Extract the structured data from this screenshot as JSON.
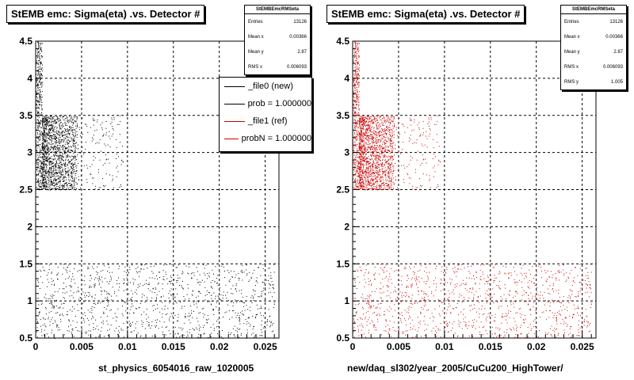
{
  "window": {
    "footer_text": ""
  },
  "chart_data": [
    {
      "type": "scatter",
      "title": "StEMB emc: Sigma(eta) .vs. Detector #",
      "xlabel": "st_physics_6054016_raw_1020005",
      "ylabel": "",
      "xlim": [
        0,
        0.0265
      ],
      "ylim": [
        0.5,
        4.5
      ],
      "xticks": [
        "0",
        "0.005",
        "0.01",
        "0.015",
        "0.02",
        "0.025"
      ],
      "yticks": [
        "0.5",
        "1",
        "1.5",
        "2",
        "2.5",
        "3",
        "3.5",
        "4",
        "4.5"
      ],
      "grid": true,
      "marker_color": "#000000",
      "stats": {
        "title": "StEMBEmcRMSeta",
        "rows": [
          {
            "label": "Entries",
            "value": "13126"
          },
          {
            "label": "Mean x",
            "value": "0.00366"
          },
          {
            "label": "Mean y",
            "value": "2.87"
          },
          {
            "label": "RMS x",
            "value": "0.006093"
          }
        ]
      },
      "legend": {
        "placement": "top-right",
        "entries": [
          {
            "label": "_file0 (new)",
            "color": "#000000"
          },
          {
            "label": "prob = 1.000000",
            "color": "#000000"
          },
          {
            "label": "_file1 (ref)",
            "color": "#cc0000"
          },
          {
            "label": "probN = 1.000000",
            "color": "#cc0000"
          }
        ]
      },
      "regions": [
        {
          "name": "spike",
          "x": [
            0,
            0.0007
          ],
          "y": [
            2.5,
            4.5
          ],
          "points": 420
        },
        {
          "name": "dense-band",
          "x": [
            0.0007,
            0.0045
          ],
          "y": [
            2.5,
            3.5
          ],
          "points": 1500
        },
        {
          "name": "sparse-band",
          "x": [
            0.0045,
            0.0095
          ],
          "y": [
            2.5,
            3.5
          ],
          "points": 140
        },
        {
          "name": "low-band",
          "x": [
            0,
            0.026
          ],
          "y": [
            0.5,
            1.5
          ],
          "points": 1100
        }
      ]
    },
    {
      "type": "scatter",
      "title": "StEMB emc: Sigma(eta) .vs. Detector #",
      "xlabel": "new/daq_sl302/year_2005/CuCu200_HighTower/",
      "ylabel": "",
      "xlim": [
        0,
        0.0265
      ],
      "ylim": [
        0.5,
        4.5
      ],
      "xticks": [
        "0",
        "0.005",
        "0.01",
        "0.015",
        "0.02",
        "0.025"
      ],
      "yticks": [
        "0.5",
        "1",
        "1.5",
        "2",
        "2.5",
        "3",
        "3.5",
        "4",
        "4.5"
      ],
      "grid": true,
      "marker_color": "#cc0000",
      "stats": {
        "title": "StEMBEmcRMSeta",
        "rows": [
          {
            "label": "Entries",
            "value": "13126"
          },
          {
            "label": "Mean x",
            "value": "0.00366"
          },
          {
            "label": "Mean y",
            "value": "2.87"
          },
          {
            "label": "RMS x",
            "value": "0.006093"
          },
          {
            "label": "RMS y",
            "value": "1.005"
          }
        ]
      },
      "regions": [
        {
          "name": "spike",
          "x": [
            0,
            0.0007
          ],
          "y": [
            2.5,
            4.5
          ],
          "points": 420
        },
        {
          "name": "dense-band",
          "x": [
            0.0007,
            0.0045
          ],
          "y": [
            2.5,
            3.5
          ],
          "points": 1500
        },
        {
          "name": "sparse-band",
          "x": [
            0.0045,
            0.0095
          ],
          "y": [
            2.5,
            3.5
          ],
          "points": 140
        },
        {
          "name": "low-band",
          "x": [
            0,
            0.026
          ],
          "y": [
            0.5,
            1.5
          ],
          "points": 1100
        }
      ]
    }
  ]
}
